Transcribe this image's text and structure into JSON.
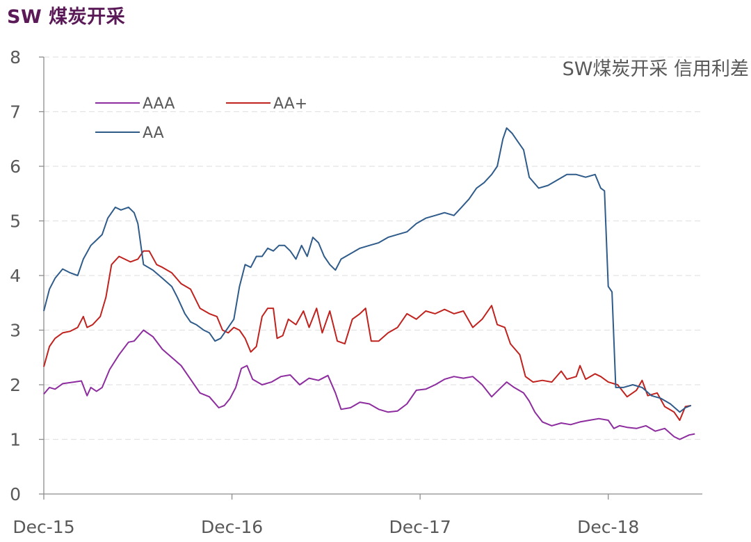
{
  "page_title": "SW 煤炭开采",
  "chart_data": {
    "type": "line",
    "title": "SW煤炭开采 信用利差",
    "ylim": [
      0,
      8
    ],
    "yticks": [
      0,
      1,
      2,
      3,
      4,
      5,
      6,
      7,
      8
    ],
    "x_tick_labels": [
      "Dec-15",
      "Dec-16",
      "Dec-17",
      "Dec-18"
    ],
    "xlim": [
      2015.92,
      2019.42
    ],
    "xticks": [
      2015.92,
      2016.92,
      2017.92,
      2018.92
    ],
    "grid": true,
    "legend_position": "top-left",
    "series": [
      {
        "name": "AAA",
        "color": "#8d2c9e",
        "points": [
          [
            2015.92,
            1.83
          ],
          [
            2015.95,
            1.95
          ],
          [
            2015.98,
            1.92
          ],
          [
            2016.02,
            2.02
          ],
          [
            2016.08,
            2.05
          ],
          [
            2016.12,
            2.07
          ],
          [
            2016.15,
            1.8
          ],
          [
            2016.17,
            1.95
          ],
          [
            2016.2,
            1.88
          ],
          [
            2016.23,
            1.95
          ],
          [
            2016.27,
            2.28
          ],
          [
            2016.32,
            2.55
          ],
          [
            2016.37,
            2.78
          ],
          [
            2016.4,
            2.8
          ],
          [
            2016.45,
            3.0
          ],
          [
            2016.5,
            2.88
          ],
          [
            2016.55,
            2.65
          ],
          [
            2016.6,
            2.5
          ],
          [
            2016.65,
            2.35
          ],
          [
            2016.7,
            2.1
          ],
          [
            2016.75,
            1.85
          ],
          [
            2016.8,
            1.78
          ],
          [
            2016.85,
            1.58
          ],
          [
            2016.88,
            1.62
          ],
          [
            2016.91,
            1.75
          ],
          [
            2016.94,
            1.95
          ],
          [
            2016.97,
            2.3
          ],
          [
            2017.0,
            2.35
          ],
          [
            2017.03,
            2.1
          ],
          [
            2017.08,
            2.0
          ],
          [
            2017.13,
            2.05
          ],
          [
            2017.18,
            2.15
          ],
          [
            2017.23,
            2.18
          ],
          [
            2017.28,
            2.0
          ],
          [
            2017.33,
            2.12
          ],
          [
            2017.38,
            2.08
          ],
          [
            2017.43,
            2.17
          ],
          [
            2017.47,
            1.85
          ],
          [
            2017.5,
            1.55
          ],
          [
            2017.55,
            1.58
          ],
          [
            2017.6,
            1.68
          ],
          [
            2017.65,
            1.65
          ],
          [
            2017.7,
            1.55
          ],
          [
            2017.75,
            1.5
          ],
          [
            2017.8,
            1.52
          ],
          [
            2017.85,
            1.65
          ],
          [
            2017.9,
            1.9
          ],
          [
            2017.95,
            1.92
          ],
          [
            2018.0,
            2.0
          ],
          [
            2018.05,
            2.1
          ],
          [
            2018.1,
            2.15
          ],
          [
            2018.15,
            2.12
          ],
          [
            2018.2,
            2.15
          ],
          [
            2018.25,
            2.0
          ],
          [
            2018.3,
            1.78
          ],
          [
            2018.35,
            1.95
          ],
          [
            2018.38,
            2.05
          ],
          [
            2018.42,
            1.95
          ],
          [
            2018.47,
            1.85
          ],
          [
            2018.5,
            1.7
          ],
          [
            2018.53,
            1.5
          ],
          [
            2018.57,
            1.32
          ],
          [
            2018.62,
            1.25
          ],
          [
            2018.67,
            1.3
          ],
          [
            2018.72,
            1.27
          ],
          [
            2018.77,
            1.32
          ],
          [
            2018.82,
            1.35
          ],
          [
            2018.87,
            1.38
          ],
          [
            2018.92,
            1.35
          ],
          [
            2018.95,
            1.2
          ],
          [
            2018.98,
            1.25
          ],
          [
            2019.02,
            1.22
          ],
          [
            2019.07,
            1.2
          ],
          [
            2019.12,
            1.25
          ],
          [
            2019.17,
            1.15
          ],
          [
            2019.22,
            1.2
          ],
          [
            2019.27,
            1.05
          ],
          [
            2019.3,
            1.0
          ],
          [
            2019.35,
            1.08
          ],
          [
            2019.38,
            1.1
          ]
        ]
      },
      {
        "name": "AA+",
        "color": "#c0221e",
        "points": [
          [
            2015.92,
            2.33
          ],
          [
            2015.95,
            2.7
          ],
          [
            2015.98,
            2.85
          ],
          [
            2016.02,
            2.95
          ],
          [
            2016.06,
            2.98
          ],
          [
            2016.1,
            3.05
          ],
          [
            2016.13,
            3.25
          ],
          [
            2016.15,
            3.05
          ],
          [
            2016.18,
            3.1
          ],
          [
            2016.22,
            3.25
          ],
          [
            2016.25,
            3.6
          ],
          [
            2016.28,
            4.2
          ],
          [
            2016.32,
            4.35
          ],
          [
            2016.35,
            4.3
          ],
          [
            2016.38,
            4.25
          ],
          [
            2016.42,
            4.3
          ],
          [
            2016.45,
            4.45
          ],
          [
            2016.48,
            4.45
          ],
          [
            2016.52,
            4.2
          ],
          [
            2016.55,
            4.15
          ],
          [
            2016.6,
            4.05
          ],
          [
            2016.65,
            3.85
          ],
          [
            2016.7,
            3.75
          ],
          [
            2016.75,
            3.4
          ],
          [
            2016.8,
            3.3
          ],
          [
            2016.84,
            3.25
          ],
          [
            2016.87,
            3.0
          ],
          [
            2016.9,
            2.95
          ],
          [
            2016.93,
            3.05
          ],
          [
            2016.96,
            3.0
          ],
          [
            2016.99,
            2.85
          ],
          [
            2017.02,
            2.6
          ],
          [
            2017.05,
            2.7
          ],
          [
            2017.08,
            3.25
          ],
          [
            2017.11,
            3.4
          ],
          [
            2017.14,
            3.4
          ],
          [
            2017.16,
            2.85
          ],
          [
            2017.19,
            2.9
          ],
          [
            2017.22,
            3.2
          ],
          [
            2017.26,
            3.1
          ],
          [
            2017.3,
            3.35
          ],
          [
            2017.33,
            3.05
          ],
          [
            2017.37,
            3.4
          ],
          [
            2017.4,
            2.95
          ],
          [
            2017.44,
            3.35
          ],
          [
            2017.48,
            2.8
          ],
          [
            2017.52,
            2.75
          ],
          [
            2017.56,
            3.2
          ],
          [
            2017.6,
            3.3
          ],
          [
            2017.63,
            3.4
          ],
          [
            2017.66,
            2.8
          ],
          [
            2017.7,
            2.8
          ],
          [
            2017.75,
            2.95
          ],
          [
            2017.8,
            3.05
          ],
          [
            2017.85,
            3.3
          ],
          [
            2017.9,
            3.2
          ],
          [
            2017.95,
            3.35
          ],
          [
            2018.0,
            3.3
          ],
          [
            2018.05,
            3.38
          ],
          [
            2018.1,
            3.3
          ],
          [
            2018.15,
            3.35
          ],
          [
            2018.2,
            3.05
          ],
          [
            2018.25,
            3.2
          ],
          [
            2018.3,
            3.45
          ],
          [
            2018.33,
            3.1
          ],
          [
            2018.37,
            3.05
          ],
          [
            2018.4,
            2.75
          ],
          [
            2018.45,
            2.55
          ],
          [
            2018.48,
            2.15
          ],
          [
            2018.52,
            2.05
          ],
          [
            2018.57,
            2.08
          ],
          [
            2018.62,
            2.05
          ],
          [
            2018.67,
            2.25
          ],
          [
            2018.7,
            2.1
          ],
          [
            2018.75,
            2.15
          ],
          [
            2018.77,
            2.35
          ],
          [
            2018.8,
            2.1
          ],
          [
            2018.85,
            2.2
          ],
          [
            2018.88,
            2.15
          ],
          [
            2018.92,
            2.05
          ],
          [
            2018.97,
            2.0
          ],
          [
            2019.02,
            1.78
          ],
          [
            2019.07,
            1.9
          ],
          [
            2019.1,
            2.08
          ],
          [
            2019.13,
            1.8
          ],
          [
            2019.18,
            1.85
          ],
          [
            2019.22,
            1.6
          ],
          [
            2019.27,
            1.5
          ],
          [
            2019.3,
            1.35
          ],
          [
            2019.33,
            1.6
          ],
          [
            2019.36,
            1.62
          ]
        ]
      },
      {
        "name": "AA",
        "color": "#2f5b8a",
        "points": [
          [
            2015.92,
            3.35
          ],
          [
            2015.95,
            3.75
          ],
          [
            2015.98,
            3.95
          ],
          [
            2016.02,
            4.12
          ],
          [
            2016.06,
            4.05
          ],
          [
            2016.1,
            4.0
          ],
          [
            2016.13,
            4.3
          ],
          [
            2016.17,
            4.55
          ],
          [
            2016.2,
            4.65
          ],
          [
            2016.23,
            4.75
          ],
          [
            2016.26,
            5.05
          ],
          [
            2016.3,
            5.25
          ],
          [
            2016.33,
            5.2
          ],
          [
            2016.37,
            5.25
          ],
          [
            2016.4,
            5.15
          ],
          [
            2016.42,
            4.95
          ],
          [
            2016.45,
            4.2
          ],
          [
            2016.5,
            4.1
          ],
          [
            2016.55,
            3.95
          ],
          [
            2016.6,
            3.8
          ],
          [
            2016.63,
            3.6
          ],
          [
            2016.67,
            3.3
          ],
          [
            2016.7,
            3.15
          ],
          [
            2016.73,
            3.1
          ],
          [
            2016.77,
            3.0
          ],
          [
            2016.8,
            2.95
          ],
          [
            2016.83,
            2.8
          ],
          [
            2016.86,
            2.85
          ],
          [
            2016.9,
            3.05
          ],
          [
            2016.93,
            3.2
          ],
          [
            2016.96,
            3.8
          ],
          [
            2016.99,
            4.2
          ],
          [
            2017.02,
            4.15
          ],
          [
            2017.05,
            4.35
          ],
          [
            2017.08,
            4.35
          ],
          [
            2017.11,
            4.5
          ],
          [
            2017.14,
            4.45
          ],
          [
            2017.17,
            4.55
          ],
          [
            2017.2,
            4.55
          ],
          [
            2017.23,
            4.45
          ],
          [
            2017.26,
            4.3
          ],
          [
            2017.29,
            4.55
          ],
          [
            2017.32,
            4.35
          ],
          [
            2017.35,
            4.7
          ],
          [
            2017.38,
            4.6
          ],
          [
            2017.41,
            4.35
          ],
          [
            2017.44,
            4.2
          ],
          [
            2017.47,
            4.1
          ],
          [
            2017.5,
            4.3
          ],
          [
            2017.55,
            4.4
          ],
          [
            2017.6,
            4.5
          ],
          [
            2017.65,
            4.55
          ],
          [
            2017.7,
            4.6
          ],
          [
            2017.75,
            4.7
          ],
          [
            2017.8,
            4.75
          ],
          [
            2017.85,
            4.8
          ],
          [
            2017.9,
            4.95
          ],
          [
            2017.95,
            5.05
          ],
          [
            2018.0,
            5.1
          ],
          [
            2018.05,
            5.15
          ],
          [
            2018.1,
            5.1
          ],
          [
            2018.14,
            5.25
          ],
          [
            2018.18,
            5.4
          ],
          [
            2018.22,
            5.6
          ],
          [
            2018.26,
            5.7
          ],
          [
            2018.3,
            5.85
          ],
          [
            2018.33,
            6.0
          ],
          [
            2018.36,
            6.5
          ],
          [
            2018.38,
            6.7
          ],
          [
            2018.41,
            6.6
          ],
          [
            2018.44,
            6.45
          ],
          [
            2018.47,
            6.3
          ],
          [
            2018.5,
            5.8
          ],
          [
            2018.55,
            5.6
          ],
          [
            2018.6,
            5.65
          ],
          [
            2018.65,
            5.75
          ],
          [
            2018.7,
            5.85
          ],
          [
            2018.75,
            5.85
          ],
          [
            2018.8,
            5.8
          ],
          [
            2018.85,
            5.85
          ],
          [
            2018.88,
            5.6
          ],
          [
            2018.9,
            5.55
          ],
          [
            2018.92,
            3.8
          ],
          [
            2018.94,
            3.7
          ],
          [
            2018.96,
            1.95
          ],
          [
            2019.0,
            1.95
          ],
          [
            2019.05,
            2.0
          ],
          [
            2019.1,
            1.95
          ],
          [
            2019.15,
            1.8
          ],
          [
            2019.2,
            1.75
          ],
          [
            2019.25,
            1.65
          ],
          [
            2019.3,
            1.5
          ],
          [
            2019.33,
            1.58
          ],
          [
            2019.36,
            1.62
          ]
        ]
      }
    ]
  }
}
